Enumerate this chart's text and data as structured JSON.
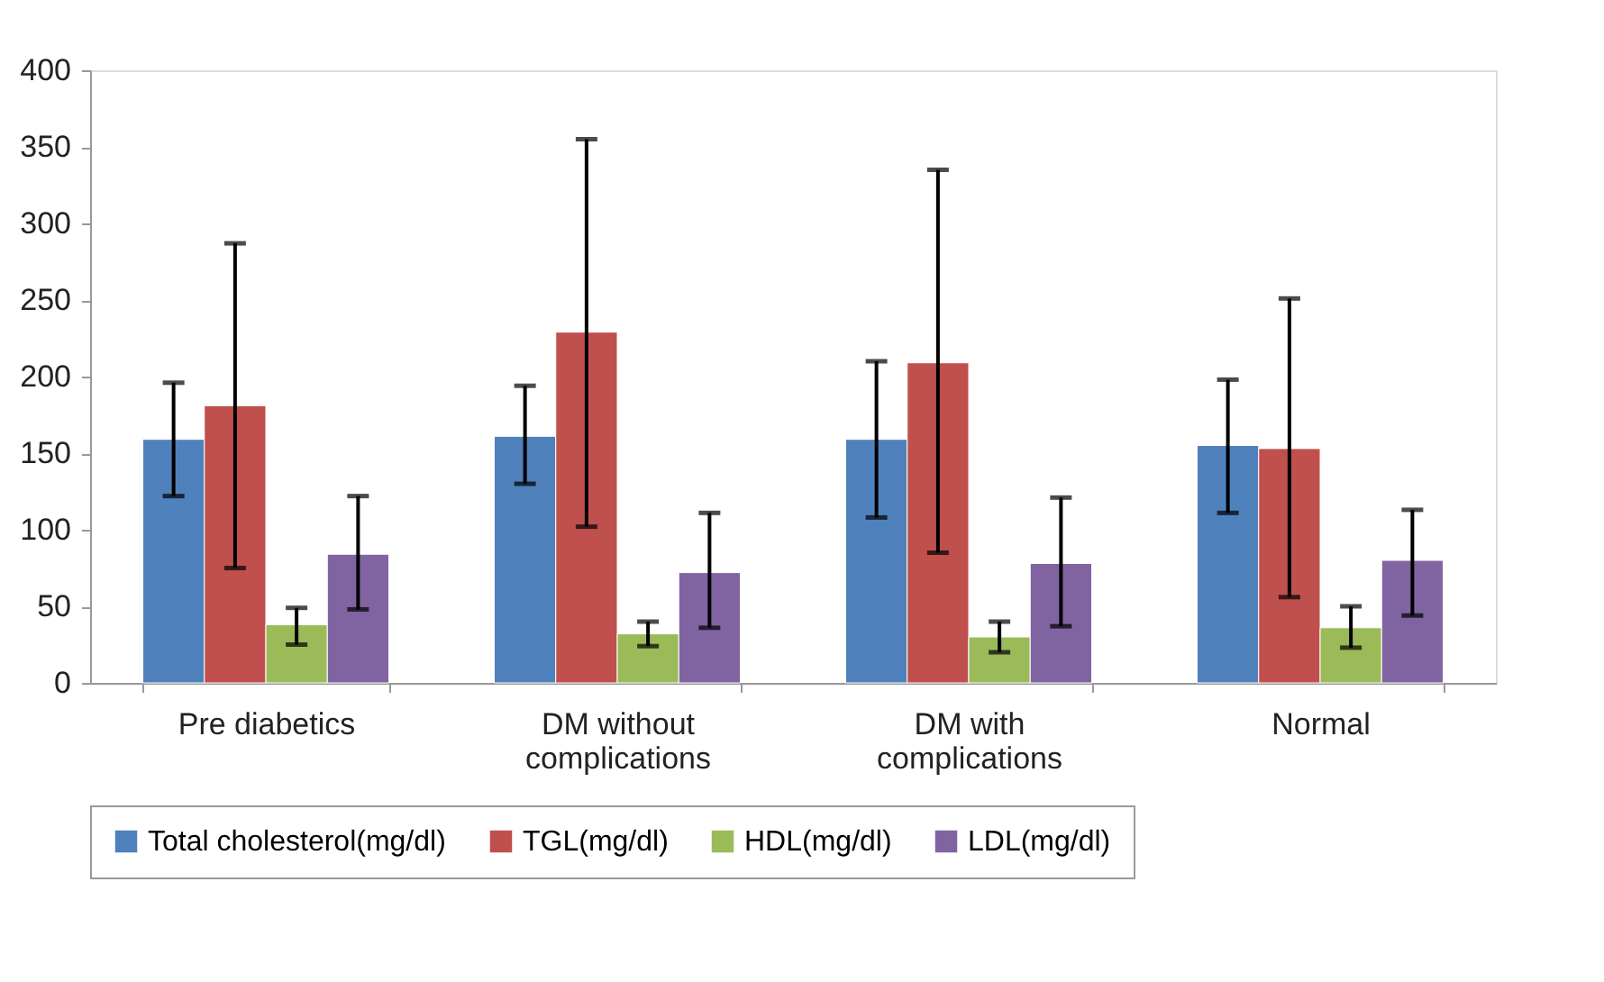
{
  "chart_data": {
    "type": "bar",
    "categories": [
      "Pre diabetics",
      "DM without complications",
      "DM with complications",
      "Normal"
    ],
    "series": [
      {
        "name": "Total cholesterol(mg/dl)",
        "color": "#4f81bd",
        "values": [
          159,
          161,
          159,
          155
        ],
        "errors": [
          [
            122,
            196
          ],
          [
            130,
            194
          ],
          [
            108,
            210
          ],
          [
            111,
            198
          ]
        ]
      },
      {
        "name": "TGL(mg/dl)",
        "color": "#c0504d",
        "values": [
          181,
          229,
          209,
          153
        ],
        "errors": [
          [
            75,
            287
          ],
          [
            102,
            355
          ],
          [
            85,
            335
          ],
          [
            56,
            251
          ]
        ]
      },
      {
        "name": "HDL(mg/dl)",
        "color": "#9bbb59",
        "values": [
          38,
          32,
          30,
          36
        ],
        "errors": [
          [
            25,
            49
          ],
          [
            24,
            40
          ],
          [
            20,
            40
          ],
          [
            23,
            50
          ]
        ]
      },
      {
        "name": "LDL(mg/dl)",
        "color": "#8064a2",
        "values": [
          84,
          72,
          78,
          80
        ],
        "errors": [
          [
            48,
            122
          ],
          [
            36,
            111
          ],
          [
            37,
            121
          ],
          [
            44,
            113
          ]
        ]
      }
    ],
    "ylim": [
      0,
      400
    ],
    "yticks": [
      0,
      50,
      100,
      150,
      200,
      250,
      300,
      350,
      400
    ],
    "grid": false,
    "legend": "bottom"
  }
}
